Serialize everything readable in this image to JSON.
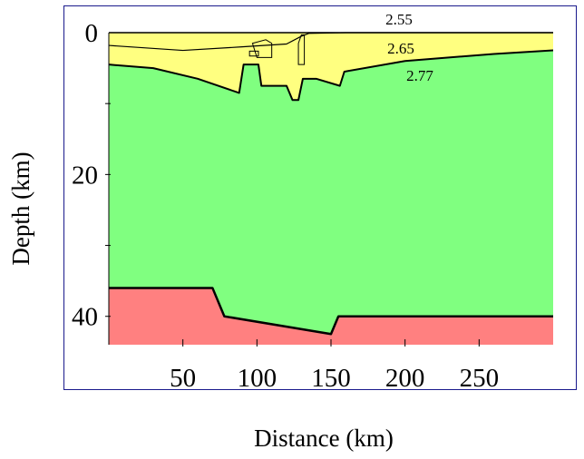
{
  "chart_data": {
    "type": "area",
    "xlabel": "Distance (km)",
    "ylabel": "Depth (km)",
    "x_ticks": [
      50,
      100,
      150,
      200,
      250
    ],
    "y_ticks": [
      0,
      20,
      40
    ],
    "xlim": [
      0,
      300
    ],
    "ylim": [
      0,
      44
    ],
    "y_inverted": true,
    "layers": [
      {
        "density_label": "2.55",
        "color": "#ffff80"
      },
      {
        "density_label": "2.65",
        "color": "#ffff80"
      },
      {
        "density_label": "2.77",
        "color": "#80ff80"
      },
      {
        "density_label": "",
        "color": "#ff8080"
      }
    ],
    "boundaries": {
      "top_sediment": [
        [
          0,
          0
        ],
        [
          300,
          0
        ]
      ],
      "base_2_55": [
        [
          0,
          1.8
        ],
        [
          50,
          2.5
        ],
        [
          90,
          2.0
        ],
        [
          120,
          1.6
        ],
        [
          130,
          0.5
        ],
        [
          135,
          0.1
        ],
        [
          160,
          0
        ],
        [
          300,
          0
        ]
      ],
      "base_2_65": [
        [
          0,
          4.5
        ],
        [
          30,
          5.0
        ],
        [
          60,
          6.5
        ],
        [
          88,
          8.5
        ],
        [
          91,
          4.5
        ],
        [
          101,
          4.5
        ],
        [
          103,
          7.5
        ],
        [
          120,
          7.5
        ],
        [
          124,
          9.5
        ],
        [
          128,
          9.5
        ],
        [
          131,
          6.5
        ],
        [
          140,
          6.5
        ],
        [
          156,
          7.5
        ],
        [
          159,
          5.5
        ],
        [
          200,
          4.0
        ],
        [
          260,
          3.0
        ],
        [
          300,
          2.5
        ]
      ],
      "moho": [
        [
          0,
          36.0
        ],
        [
          70,
          36.0
        ],
        [
          78,
          40.0
        ],
        [
          150,
          42.5
        ],
        [
          155,
          40.0
        ],
        [
          300,
          40.0
        ]
      ],
      "model_bottom": [
        [
          0,
          44
        ],
        [
          300,
          44
        ]
      ]
    }
  }
}
